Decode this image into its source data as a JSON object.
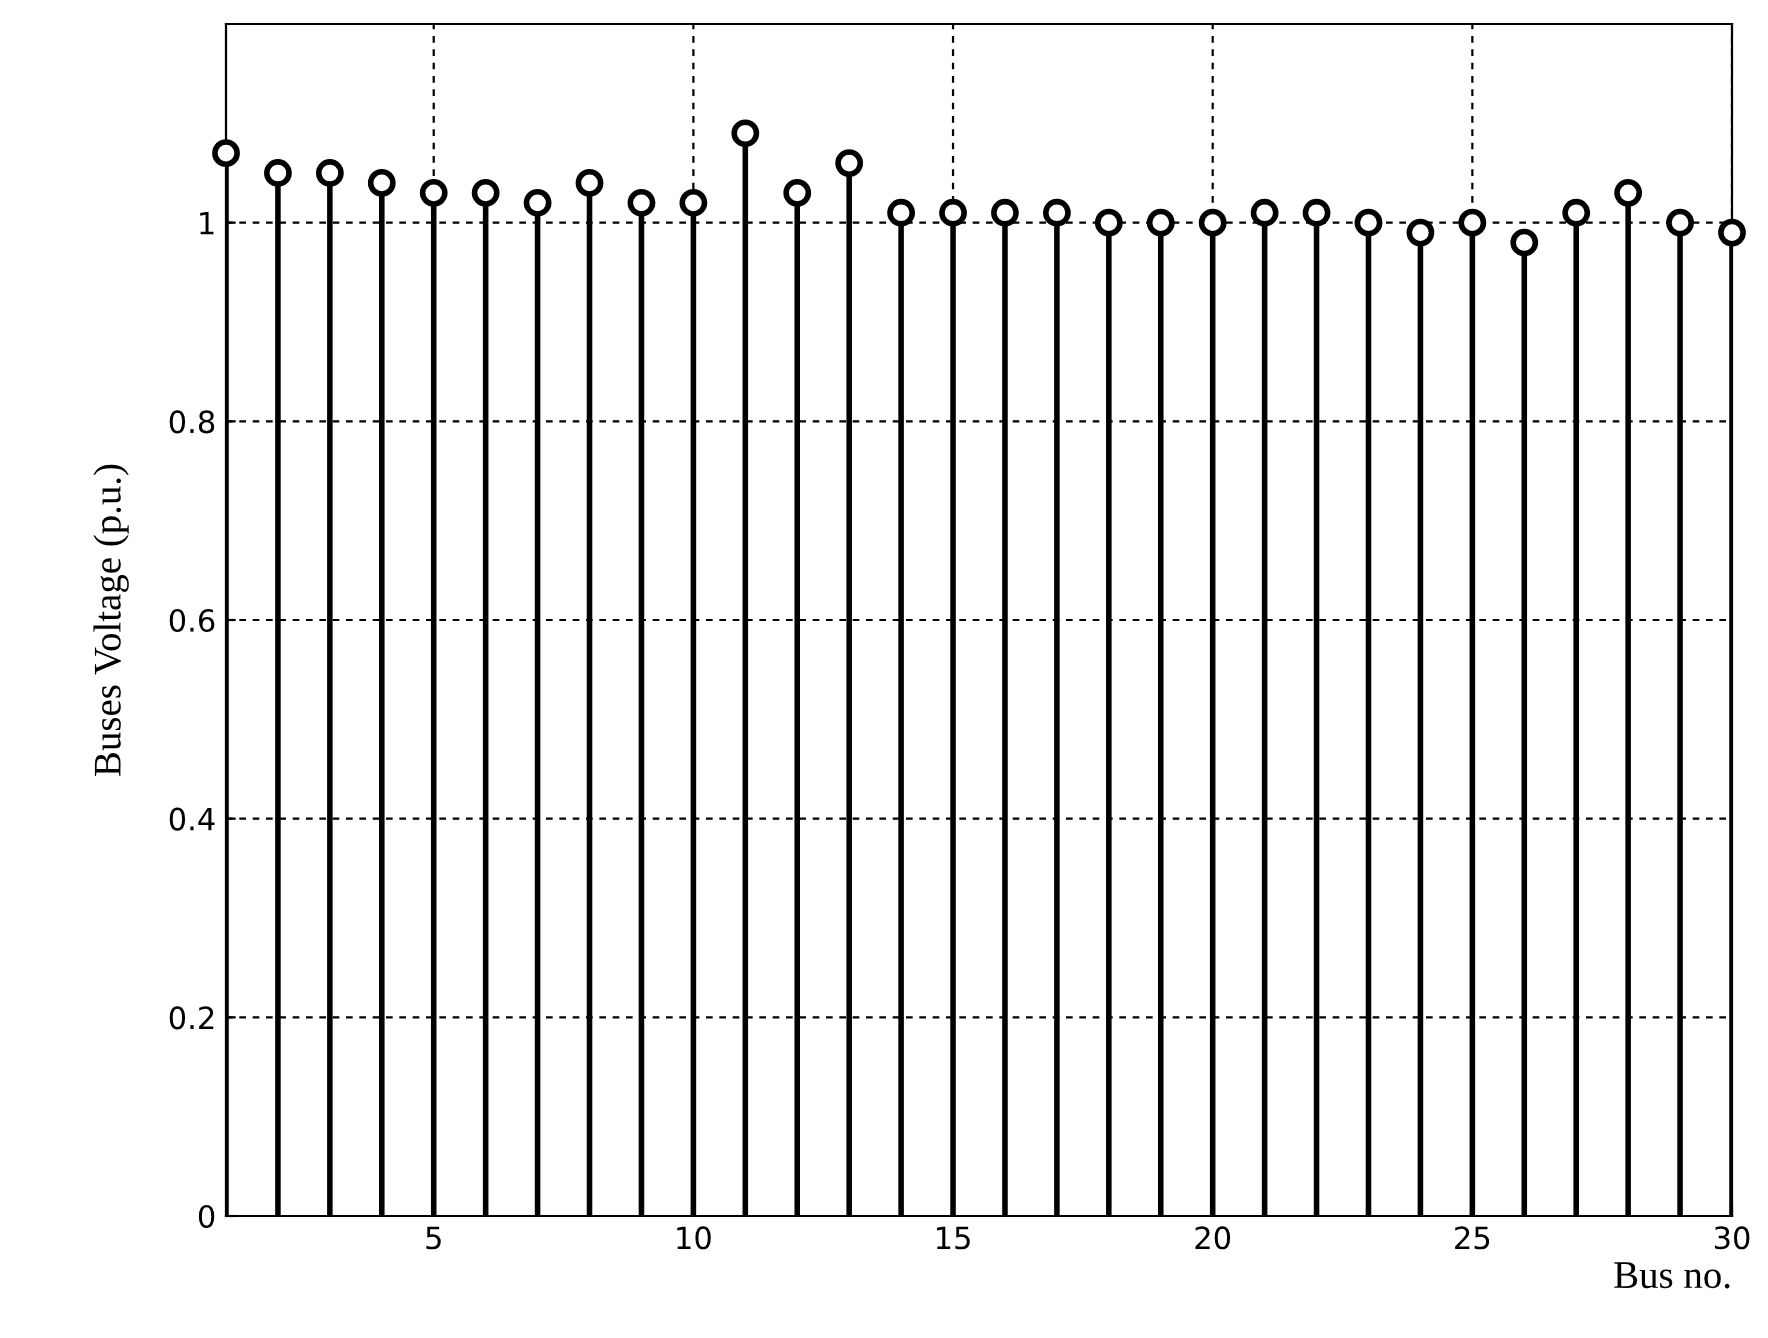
{
  "chart_data": {
    "type": "lollipop",
    "xlabel": "Bus no.",
    "ylabel": "Buses Voltage (p.u.)",
    "x": [
      1,
      2,
      3,
      4,
      5,
      6,
      7,
      8,
      9,
      10,
      11,
      12,
      13,
      14,
      15,
      16,
      17,
      18,
      19,
      20,
      21,
      22,
      23,
      24,
      25,
      26,
      27,
      28,
      29,
      30
    ],
    "series": [
      {
        "color": "#000000",
        "values": [
          1.07,
          1.05,
          1.05,
          1.04,
          1.03,
          1.03,
          1.02,
          1.04,
          1.02,
          1.02,
          1.09,
          1.03,
          1.06,
          1.01,
          1.01,
          1.01,
          1.01,
          1.0,
          1.0,
          1.0,
          1.01,
          1.01,
          1.0,
          0.99,
          1.0,
          0.98,
          1.01,
          1.03,
          1.0,
          0.99
        ]
      }
    ],
    "xlim": [
      1,
      30
    ],
    "xticks": [
      5,
      10,
      15,
      20,
      25,
      30
    ],
    "ylim": [
      0,
      1.2
    ],
    "yticks": [
      0,
      0.2,
      0.4,
      0.6,
      0.8,
      1
    ],
    "grid": true,
    "marker": "circle",
    "line_style": "solid"
  }
}
